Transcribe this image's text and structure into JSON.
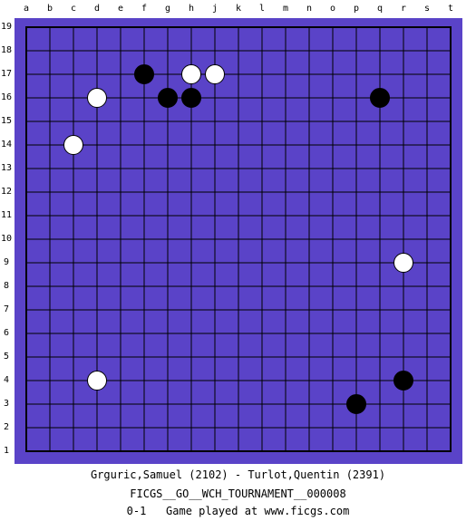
{
  "board": {
    "size": 19,
    "columns": [
      "a",
      "b",
      "c",
      "d",
      "e",
      "f",
      "g",
      "h",
      "j",
      "k",
      "l",
      "m",
      "n",
      "o",
      "p",
      "q",
      "r",
      "s",
      "t"
    ],
    "rows": [
      "19",
      "18",
      "17",
      "16",
      "15",
      "14",
      "13",
      "12",
      "11",
      "10",
      "9",
      "8",
      "7",
      "6",
      "5",
      "4",
      "3",
      "2",
      "1"
    ],
    "colors": {
      "board": "#5a43c8",
      "grid": "#000000",
      "black_stone": "#000000",
      "white_stone": "#ffffff"
    },
    "stones": [
      {
        "color": "black",
        "point": "f17"
      },
      {
        "color": "black",
        "point": "g16"
      },
      {
        "color": "black",
        "point": "h16"
      },
      {
        "color": "black",
        "point": "q16"
      },
      {
        "color": "black",
        "point": "r4"
      },
      {
        "color": "black",
        "point": "p3"
      },
      {
        "color": "white",
        "point": "h17"
      },
      {
        "color": "white",
        "point": "j17"
      },
      {
        "color": "white",
        "point": "d16"
      },
      {
        "color": "white",
        "point": "c14"
      },
      {
        "color": "white",
        "point": "r9"
      },
      {
        "color": "white",
        "point": "d4"
      }
    ]
  },
  "footer": {
    "players": "Grguric,Samuel (2102) - Turlot,Quentin (2391)",
    "event": "FICGS__GO__WCH_TOURNAMENT__000008",
    "result_line": "0-1   Game played at www.ficgs.com"
  }
}
